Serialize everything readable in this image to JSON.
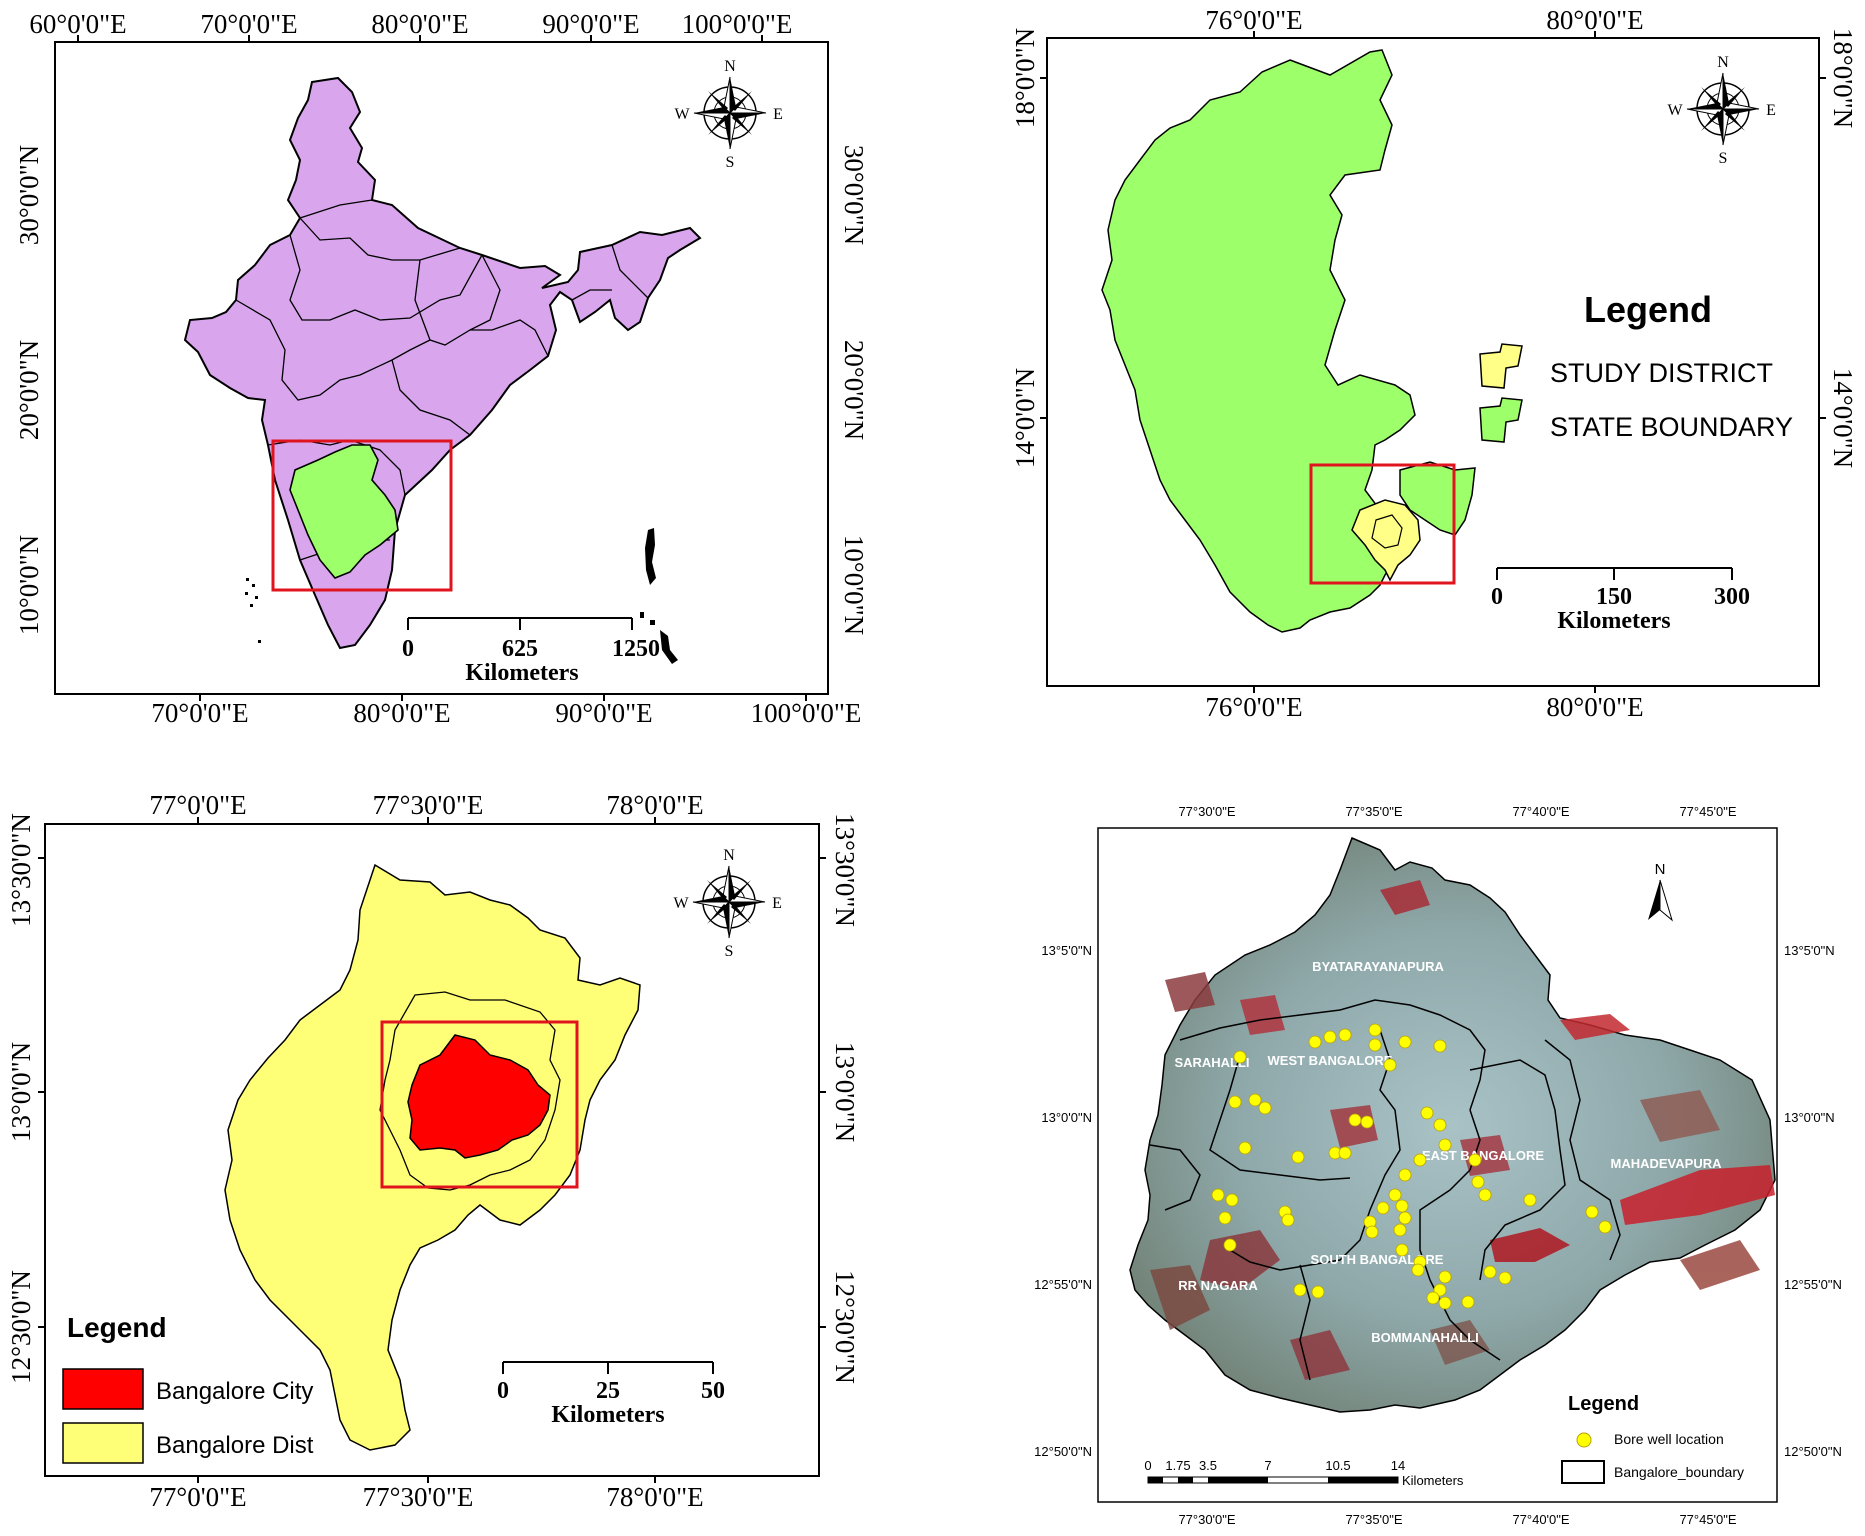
{
  "panel_a": {
    "top_labels": [
      "60°0'0\"E",
      "70°0'0\"E",
      "80°0'0\"E",
      "90°0'0\"E",
      "100°0'0\"E"
    ],
    "bottom_labels": [
      "70°0'0\"E",
      "80°0'0\"E",
      "90°0'0\"E",
      "100°0'0\"E"
    ],
    "left_labels": [
      "30°0'0\"N",
      "20°0'0\"N",
      "10°0'0\"N"
    ],
    "right_labels": [
      "30°0'0\"N",
      "20°0'0\"N",
      "10°0'0\"N"
    ],
    "scale": [
      "0",
      "625",
      "1250"
    ],
    "scale_unit": "Kilometers",
    "compass": {
      "n": "N",
      "s": "S",
      "e": "E",
      "w": "W"
    },
    "colors": {
      "country": "#d9a6ee",
      "state": "#9dff6a",
      "box": "#e0141e"
    }
  },
  "panel_b": {
    "top_labels": [
      "76°0'0\"E",
      "80°0'0\"E"
    ],
    "bottom_labels": [
      "76°0'0\"E",
      "80°0'0\"E"
    ],
    "left_labels": [
      "18°0'0\"N",
      "14°0'0\"N"
    ],
    "right_labels": [
      "18°0'0\"N",
      "14°0'0\"N"
    ],
    "legend_title": "Legend",
    "legend_items": [
      "STUDY DISTRICT",
      "STATE BOUNDARY"
    ],
    "scale": [
      "0",
      "150",
      "300"
    ],
    "scale_unit": "Kilometers",
    "compass": {
      "n": "N",
      "s": "S",
      "e": "E",
      "w": "W"
    },
    "colors": {
      "state": "#9dff6a",
      "district": "#ffff88",
      "box": "#e0141e"
    }
  },
  "panel_c": {
    "top_labels": [
      "77°0'0\"E",
      "77°30'0\"E",
      "78°0'0\"E"
    ],
    "bottom_labels": [
      "77°0'0\"E",
      "77°30'0\"E",
      "78°0'0\"E"
    ],
    "left_labels": [
      "13°30'0\"N",
      "13°0'0\"N",
      "12°30'0\"N"
    ],
    "right_labels": [
      "13°30'0\"N",
      "13°0'0\"N",
      "12°30'0\"N"
    ],
    "legend_title": "Legend",
    "legend_items": [
      "Bangalore City",
      "Bangalore Dist"
    ],
    "scale": [
      "0",
      "25",
      "50"
    ],
    "scale_unit": "Kilometers",
    "compass": {
      "n": "N",
      "s": "S",
      "e": "E",
      "w": "W"
    },
    "colors": {
      "city": "#ff0000",
      "district": "#ffff77",
      "box": "#e0141e"
    }
  },
  "panel_d": {
    "top_labels": [
      "77°30'0\"E",
      "77°35'0\"E",
      "77°40'0\"E",
      "77°45'0\"E"
    ],
    "bottom_labels": [
      "77°30'0\"E",
      "77°35'0\"E",
      "77°40'0\"E",
      "77°45'0\"E"
    ],
    "left_labels": [
      "13°5'0\"N",
      "13°0'0\"N",
      "12°55'0\"N",
      "12°50'0\"N"
    ],
    "right_labels": [
      "13°5'0\"N",
      "13°0'0\"N",
      "12°55'0\"N",
      "12°50'0\"N"
    ],
    "zones": [
      "BYATARAYANAPURA",
      "SARAHALLI",
      "WEST BANGALORE",
      "EAST BANGALORE",
      "MAHADEVAPURA",
      "SOUTH BANGALORE",
      "RR NAGARA",
      "BOMMANAHALLI"
    ],
    "legend_title": "Legend",
    "legend_items": [
      "Bore well location",
      "Bangalore_boundary"
    ],
    "scale": [
      "0",
      "1.75",
      "3.5",
      "7",
      "10.5",
      "14"
    ],
    "scale_unit": "Kilometers",
    "north": "N",
    "colors": {
      "imagery": "#7f9a9c",
      "urban": "#a8c4c8",
      "vegetation": "#b0303a",
      "well": "#ffff00"
    }
  }
}
